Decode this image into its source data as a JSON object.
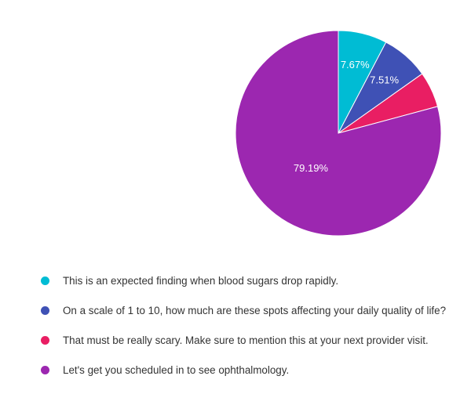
{
  "chart_data": {
    "type": "pie",
    "start_angle_deg": 0,
    "direction": "clockwise",
    "slices": [
      {
        "label": "This is an expected finding when blood sugars drop rapidly.",
        "value": 7.67,
        "display": "7.67%",
        "color": "#00bcd4"
      },
      {
        "label": "On a scale of 1 to 10, how much are these spots affecting your daily quality of life?",
        "value": 7.51,
        "display": "7.51%",
        "color": "#3f51b5"
      },
      {
        "label": "That must be really scary. Make sure to mention this at your next provider visit.",
        "value": 5.63,
        "display": "",
        "color": "#e91e63"
      },
      {
        "label": "Let's get you scheduled in to see ophthalmology.",
        "value": 79.19,
        "display": "79.19%",
        "color": "#9c27b0"
      }
    ],
    "legend_position": "bottom"
  }
}
